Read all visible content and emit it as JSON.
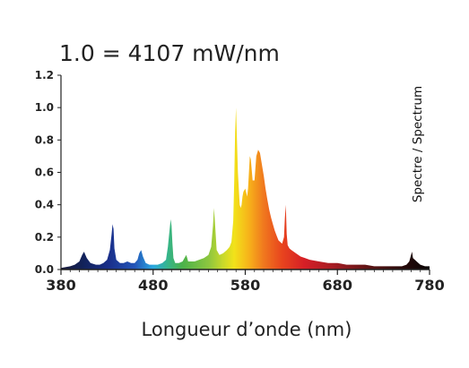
{
  "chart_data": {
    "type": "area",
    "title": "1.0 = 4107 mW/nm",
    "xlabel": "Longueur d’onde (nm)",
    "side_label": "Spectre / Spectrum",
    "xlim": [
      380,
      780
    ],
    "ylim": [
      0,
      1.2
    ],
    "x_ticks": [
      380,
      480,
      580,
      680,
      780
    ],
    "y_ticks": [
      0.0,
      0.2,
      0.4,
      0.6,
      0.8,
      1.0,
      1.2
    ],
    "y_tick_labels": [
      "0.0",
      "0.2",
      "0.4",
      "0.6",
      "0.8",
      "1.0",
      "1.2"
    ],
    "grid": false,
    "series": [
      {
        "x": [
          380,
          390,
          395,
          400,
          403,
          405,
          408,
          412,
          418,
          422,
          426,
          430,
          433,
          435,
          436,
          437,
          438,
          440,
          444,
          448,
          452,
          456,
          460,
          463,
          465,
          467,
          469,
          472,
          476,
          480,
          485,
          490,
          494,
          496,
          498,
          499,
          500,
          501,
          502,
          504,
          508,
          512,
          514,
          516,
          517,
          518,
          520,
          525,
          530,
          535,
          540,
          543,
          545,
          546,
          547,
          549,
          552,
          556,
          560,
          563,
          565,
          567,
          568,
          569,
          570,
          572,
          574,
          575,
          576,
          577,
          578,
          580,
          582,
          583,
          584,
          585,
          586,
          588,
          590,
          592,
          594,
          596,
          598,
          600,
          602,
          604,
          606,
          608,
          610,
          612,
          614,
          616,
          618,
          620,
          622,
          623,
          624,
          625,
          626,
          628,
          630,
          635,
          640,
          645,
          650,
          660,
          670,
          680,
          690,
          700,
          710,
          720,
          730,
          740,
          750,
          755,
          758,
          760,
          761,
          762,
          764,
          766,
          770,
          775,
          780
        ],
        "y": [
          0.01,
          0.02,
          0.03,
          0.05,
          0.09,
          0.11,
          0.07,
          0.04,
          0.03,
          0.03,
          0.04,
          0.06,
          0.12,
          0.22,
          0.28,
          0.25,
          0.13,
          0.06,
          0.04,
          0.04,
          0.05,
          0.04,
          0.04,
          0.06,
          0.1,
          0.12,
          0.08,
          0.04,
          0.03,
          0.03,
          0.03,
          0.04,
          0.06,
          0.14,
          0.25,
          0.31,
          0.27,
          0.16,
          0.07,
          0.04,
          0.04,
          0.05,
          0.07,
          0.09,
          0.07,
          0.05,
          0.05,
          0.05,
          0.06,
          0.07,
          0.09,
          0.14,
          0.27,
          0.38,
          0.3,
          0.12,
          0.09,
          0.1,
          0.12,
          0.14,
          0.17,
          0.3,
          0.55,
          0.85,
          1.0,
          0.6,
          0.4,
          0.38,
          0.4,
          0.45,
          0.48,
          0.5,
          0.45,
          0.5,
          0.6,
          0.7,
          0.68,
          0.55,
          0.55,
          0.7,
          0.74,
          0.72,
          0.65,
          0.58,
          0.5,
          0.43,
          0.37,
          0.32,
          0.28,
          0.24,
          0.21,
          0.18,
          0.17,
          0.16,
          0.2,
          0.32,
          0.4,
          0.22,
          0.15,
          0.13,
          0.12,
          0.1,
          0.08,
          0.07,
          0.06,
          0.05,
          0.04,
          0.04,
          0.03,
          0.03,
          0.03,
          0.02,
          0.02,
          0.02,
          0.02,
          0.03,
          0.05,
          0.09,
          0.11,
          0.07,
          0.06,
          0.05,
          0.03,
          0.02,
          0.02
        ]
      }
    ]
  }
}
